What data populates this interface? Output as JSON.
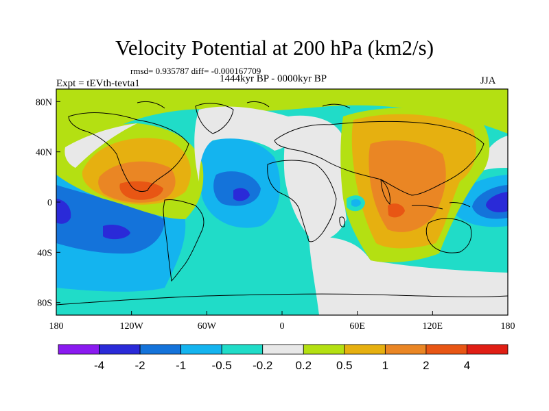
{
  "title": "Velocity Potential at 200 hPa (km2/s)",
  "stats_line": "rmsd= 0.935787 diff= -0.000167709",
  "period_line": "1444kyr BP - 0000kyr BP",
  "experiment_label": "Expt = tEVth-tevta1",
  "season_label": "JJA",
  "map": {
    "lon_range": [
      -180,
      180
    ],
    "lat_range": [
      -90,
      90
    ],
    "x_ticks": [
      {
        "lon": -180,
        "label": "180"
      },
      {
        "lon": -120,
        "label": "120W"
      },
      {
        "lon": -60,
        "label": "60W"
      },
      {
        "lon": 0,
        "label": "0"
      },
      {
        "lon": 60,
        "label": "60E"
      },
      {
        "lon": 120,
        "label": "120E"
      },
      {
        "lon": 180,
        "label": "180"
      }
    ],
    "y_ticks": [
      {
        "lat": 80,
        "label": "80N"
      },
      {
        "lat": 40,
        "label": "40N"
      },
      {
        "lat": 0,
        "label": "0"
      },
      {
        "lat": -40,
        "label": "40S"
      },
      {
        "lat": -80,
        "label": "80S"
      }
    ]
  },
  "colorbar": {
    "colors": [
      "#8a1af0",
      "#2a2ad8",
      "#1473da",
      "#14b4ef",
      "#20dcc8",
      "#e8e8e8",
      "#b4e012",
      "#e6b010",
      "#ea8624",
      "#e85614",
      "#e01e14"
    ],
    "labels": [
      "-4",
      "-2",
      "-1",
      "-0.5",
      "-0.2",
      "0.2",
      "0.5",
      "1",
      "2",
      "4"
    ]
  }
}
